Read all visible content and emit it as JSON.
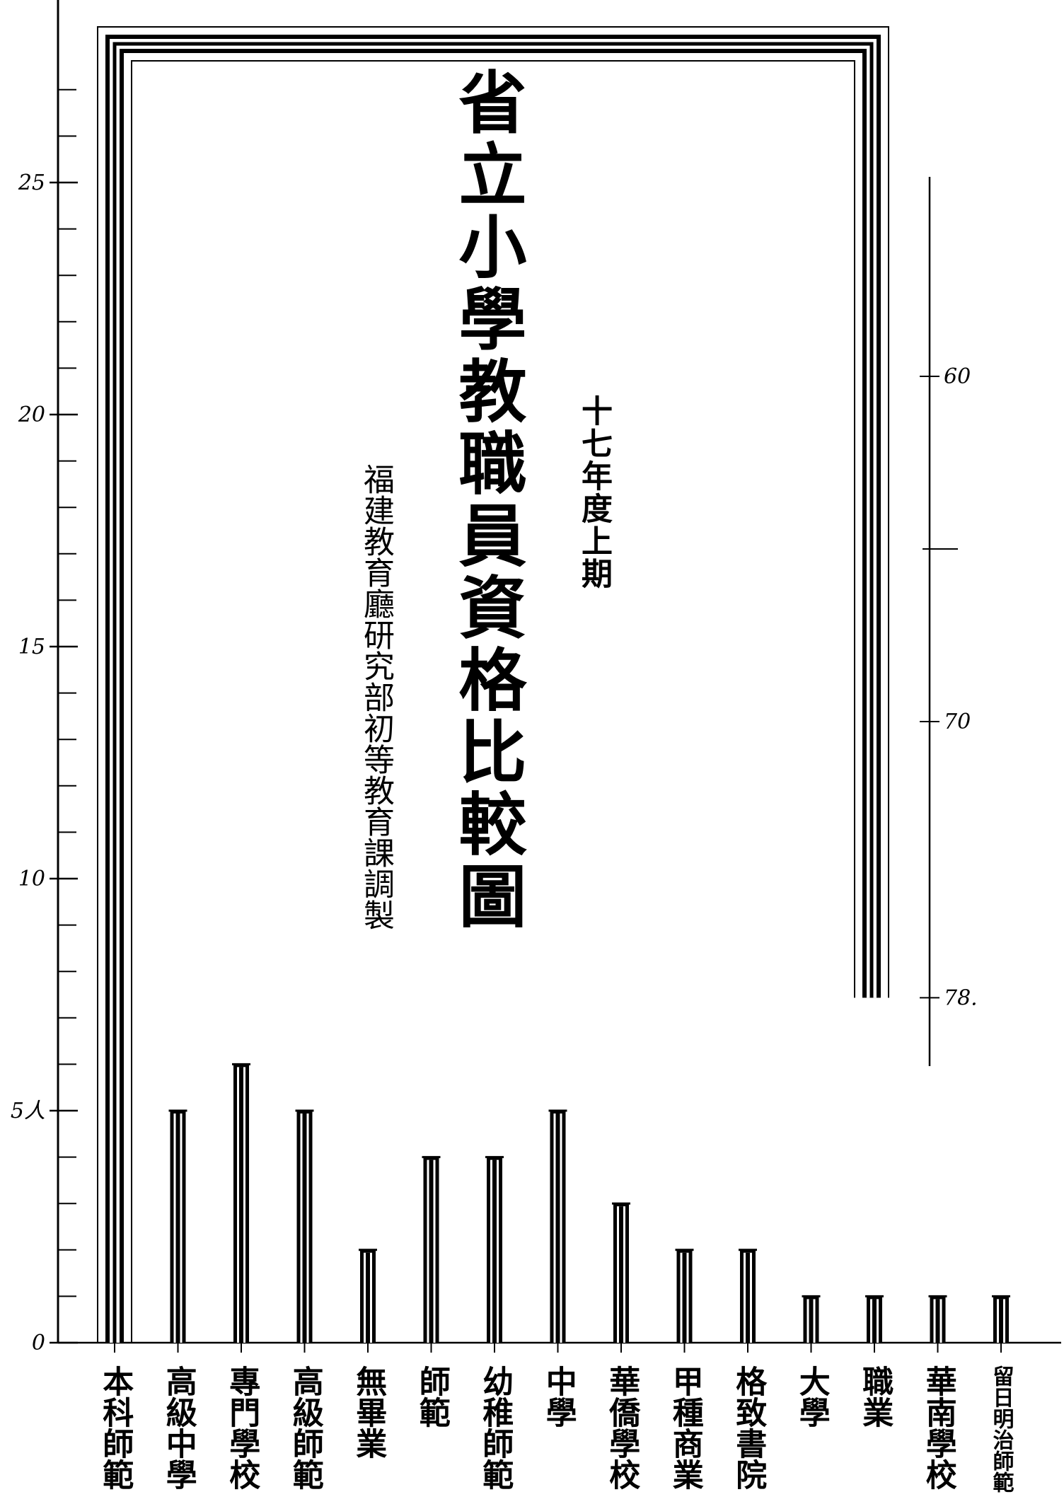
{
  "header": {
    "title": "省立小學教職員資格比較圖",
    "period": "十七年度上期",
    "credit": "福建教育廳研究部初等教育課調製"
  },
  "chart_data": {
    "type": "bar",
    "title": "省立小學教職員資格比較圖",
    "subtitle": "十七年度上期",
    "categories": [
      "本科師範",
      "高級中學",
      "專門學校",
      "高級師範",
      "無畢業",
      "師範",
      "幼稚師範",
      "中學",
      "華僑學校",
      "甲種商業",
      "格致書院",
      "大學",
      "職業",
      "華南學校",
      "留日明治師範"
    ],
    "values": [
      78,
      5,
      6,
      5,
      2,
      4,
      4,
      5,
      3,
      2,
      2,
      1,
      1,
      1,
      1
    ],
    "ylim": [
      0,
      27
    ],
    "left_axis_ticks": [
      {
        "value": 0,
        "label": "0"
      },
      {
        "value": 5,
        "label": "5人"
      },
      {
        "value": 10,
        "label": "10"
      },
      {
        "value": 15,
        "label": "15"
      },
      {
        "value": 20,
        "label": "20"
      },
      {
        "value": 25,
        "label": "25"
      }
    ],
    "right_axis_ticks": [
      {
        "value": 60,
        "label": "60"
      },
      {
        "value": 70,
        "label": "70"
      },
      {
        "value": 78,
        "label": "78."
      }
    ],
    "grid": false,
    "legend": "none",
    "colors": {
      "ink": "#000000",
      "paper": "#ffffff"
    }
  }
}
